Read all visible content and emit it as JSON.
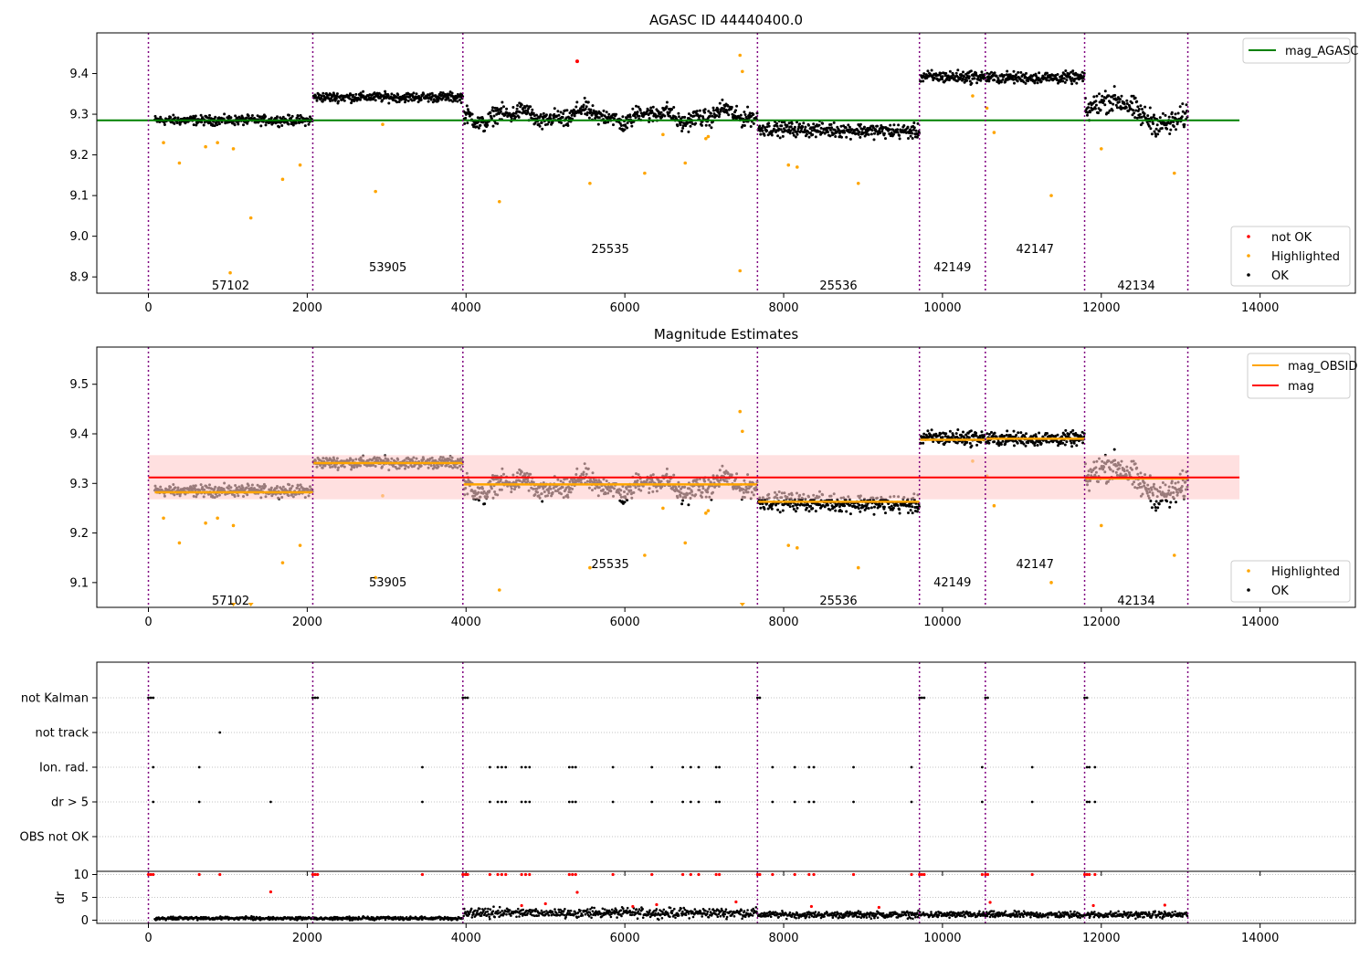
{
  "colors": {
    "ok": "#000000",
    "highlighted": "#ffa500",
    "not_ok": "#ff0000",
    "agasc_line": "#008000",
    "obsid_line": "#ffa500",
    "mag_line": "#ff0000",
    "mag_band": "#ffcccc",
    "obs_boundary": "#800080",
    "grid": "#b0b0b0"
  },
  "chart_data": [
    {
      "type": "scatter",
      "title": "AGASC ID 44440400.0",
      "xlim": [
        -650,
        15200
      ],
      "ylim": [
        8.86,
        9.5
      ],
      "xticks": [
        0,
        2000,
        4000,
        6000,
        8000,
        10000,
        12000,
        14000
      ],
      "yticks": [
        8.9,
        9.0,
        9.1,
        9.2,
        9.3,
        9.4
      ],
      "ytick_labels": [
        "8.9",
        "9.0",
        "9.1",
        "9.2",
        "9.3",
        "9.4"
      ],
      "obs_boundaries": [
        0,
        2070,
        3960,
        7670,
        9710,
        10540,
        11790,
        13090
      ],
      "obsids": [
        {
          "label": "57102",
          "x": 1035,
          "y": 8.88
        },
        {
          "label": "53905",
          "x": 3015,
          "y": 8.925
        },
        {
          "label": "25535",
          "x": 5815,
          "y": 8.97
        },
        {
          "label": "25536",
          "x": 8690,
          "y": 8.88
        },
        {
          "label": "42149",
          "x": 10125,
          "y": 8.925
        },
        {
          "label": "42147",
          "x": 11165,
          "y": 8.97
        },
        {
          "label": "42134",
          "x": 12440,
          "y": 8.88
        }
      ],
      "segments": [
        {
          "x": [
            80,
            2070
          ],
          "mag": 9.285,
          "noise": 0.01,
          "obs_mag": 9.282
        },
        {
          "x": [
            2080,
            3960
          ],
          "mag": 9.342,
          "noise": 0.01,
          "obs_mag": 9.341
        },
        {
          "x": [
            3970,
            7670
          ],
          "mag": 9.295,
          "noise": 0.018,
          "obs_mag": 9.298
        },
        {
          "x": [
            7680,
            9710
          ],
          "mag": 9.265,
          "noise": 0.015,
          "obs_mag": 9.263
        },
        {
          "x": [
            9720,
            10540
          ],
          "mag": 9.392,
          "noise": 0.013,
          "obs_mag": 9.388
        },
        {
          "x": [
            10550,
            11790
          ],
          "mag": 9.39,
          "noise": 0.012,
          "obs_mag": 9.39
        },
        {
          "x": [
            11800,
            13090
          ],
          "mag": 9.305,
          "noise": 0.025,
          "obs_mag": 9.31
        }
      ],
      "highlighted_points": [
        [
          190,
          9.23
        ],
        [
          390,
          9.18
        ],
        [
          720,
          9.22
        ],
        [
          870,
          9.23
        ],
        [
          1070,
          9.215
        ],
        [
          1290,
          9.045
        ],
        [
          1690,
          9.14
        ],
        [
          1910,
          9.175
        ],
        [
          1030,
          8.91
        ],
        [
          2860,
          9.11
        ],
        [
          2950,
          9.275
        ],
        [
          4420,
          9.085
        ],
        [
          5560,
          9.13
        ],
        [
          6250,
          9.155
        ],
        [
          6760,
          9.18
        ],
        [
          7450,
          8.915
        ],
        [
          7450,
          9.445
        ],
        [
          7480,
          9.405
        ],
        [
          8060,
          9.175
        ],
        [
          8170,
          9.17
        ],
        [
          8940,
          9.13
        ],
        [
          10380,
          9.345
        ],
        [
          10560,
          9.315
        ],
        [
          10650,
          9.255
        ],
        [
          11370,
          9.1
        ],
        [
          12000,
          9.215
        ],
        [
          12920,
          9.155
        ],
        [
          7020,
          9.24
        ],
        [
          7050,
          9.245
        ],
        [
          6480,
          9.25
        ]
      ],
      "not_ok_points": [
        [
          5400,
          9.43
        ]
      ],
      "legend": [
        "mag_AGASC",
        "not OK",
        "Highlighted",
        "OK"
      ],
      "legend_position": "top-right",
      "agasc_mag": 9.285,
      "agasc_line_x": [
        -650,
        13740
      ]
    },
    {
      "type": "scatter",
      "title": "Magnitude Estimates",
      "xlim": [
        -650,
        15200
      ],
      "ylim": [
        9.05,
        9.575
      ],
      "xticks": [
        0,
        2000,
        4000,
        6000,
        8000,
        10000,
        12000,
        14000
      ],
      "yticks": [
        9.1,
        9.2,
        9.3,
        9.4,
        9.5
      ],
      "ytick_labels": [
        "9.1",
        "9.2",
        "9.3",
        "9.4",
        "9.5"
      ],
      "obsids": [
        {
          "label": "57102",
          "x": 1035,
          "y": 9.065
        },
        {
          "label": "53905",
          "x": 3015,
          "y": 9.102
        },
        {
          "label": "25535",
          "x": 5815,
          "y": 9.138
        },
        {
          "label": "25536",
          "x": 8690,
          "y": 9.065
        },
        {
          "label": "42149",
          "x": 10125,
          "y": 9.102
        },
        {
          "label": "42147",
          "x": 11165,
          "y": 9.138
        },
        {
          "label": "42134",
          "x": 12440,
          "y": 9.065
        }
      ],
      "mag": 9.312,
      "mag_band": [
        9.268,
        9.357
      ],
      "mag_line_x": [
        0,
        13740
      ],
      "clipped_low_points": [
        1070,
        1290,
        7480
      ],
      "legend_top": [
        "mag_OBSID",
        "mag"
      ],
      "legend_bottom": [
        "Highlighted",
        "OK"
      ]
    },
    {
      "type": "scatter",
      "categories": [
        "not Kalman",
        "not track",
        "Ion. rad.",
        "dr > 5",
        "OBS not OK"
      ],
      "flags": {
        "not Kalman": [
          0,
          30,
          60,
          2070,
          2100,
          2130,
          3960,
          3990,
          4020,
          7670,
          7700,
          9710,
          9740,
          9770,
          10540,
          10570,
          11790,
          11820
        ],
        "not track": [
          900
        ],
        "Ion. rad.": [
          60,
          640,
          3450,
          4300,
          4400,
          4450,
          4500,
          4700,
          4750,
          4800,
          5300,
          5340,
          5380,
          5850,
          6340,
          6730,
          6830,
          6930,
          7150,
          7190,
          7860,
          8140,
          8320,
          8380,
          8880,
          9610,
          10500,
          11130,
          11820,
          11850,
          11920
        ],
        "dr > 5": [
          60,
          640,
          1540,
          3450,
          4300,
          4400,
          4450,
          4500,
          4700,
          4750,
          4800,
          5300,
          5340,
          5380,
          5850,
          6340,
          6730,
          6830,
          6930,
          7150,
          7190,
          7860,
          8140,
          8320,
          8380,
          8880,
          9610,
          10500,
          11130,
          11820,
          11850,
          11920
        ],
        "OBS not OK": []
      }
    },
    {
      "type": "scatter",
      "ylabel": "dr",
      "ylim": [
        -0.7,
        10.7
      ],
      "yticks": [
        0,
        5,
        10
      ],
      "ytick_labels": [
        "0",
        "5",
        "10"
      ],
      "xticks": [
        0,
        2000,
        4000,
        6000,
        8000,
        10000,
        12000,
        14000
      ],
      "dr_segments": [
        {
          "x": [
            80,
            3960
          ],
          "level": 0.4,
          "spread": 0.3
        },
        {
          "x": [
            3970,
            7670
          ],
          "level": 1.6,
          "spread": 0.9
        },
        {
          "x": [
            7680,
            13090
          ],
          "level": 1.2,
          "spread": 0.6
        }
      ],
      "dr_high_points": [
        [
          0,
          10
        ],
        [
          30,
          10
        ],
        [
          60,
          10
        ],
        [
          640,
          10
        ],
        [
          900,
          10
        ],
        [
          2070,
          10
        ],
        [
          2100,
          10
        ],
        [
          2130,
          10
        ],
        [
          3450,
          10
        ],
        [
          3960,
          10
        ],
        [
          3990,
          10
        ],
        [
          4020,
          10
        ],
        [
          4300,
          10
        ],
        [
          4400,
          10
        ],
        [
          4450,
          10
        ],
        [
          4500,
          10
        ],
        [
          4700,
          10
        ],
        [
          4750,
          10
        ],
        [
          4800,
          10
        ],
        [
          5300,
          10
        ],
        [
          5340,
          10
        ],
        [
          5380,
          10
        ],
        [
          5850,
          10
        ],
        [
          6340,
          10
        ],
        [
          6730,
          10
        ],
        [
          6830,
          10
        ],
        [
          6930,
          10
        ],
        [
          7150,
          10
        ],
        [
          7190,
          10
        ],
        [
          7670,
          10
        ],
        [
          7700,
          10
        ],
        [
          7860,
          10
        ],
        [
          8140,
          10
        ],
        [
          8320,
          10
        ],
        [
          8380,
          10
        ],
        [
          8880,
          10
        ],
        [
          9610,
          10
        ],
        [
          9710,
          10
        ],
        [
          9740,
          10
        ],
        [
          9770,
          10
        ],
        [
          10500,
          10
        ],
        [
          10540,
          10
        ],
        [
          10570,
          10
        ],
        [
          11130,
          10
        ],
        [
          11790,
          10
        ],
        [
          11820,
          10
        ],
        [
          11850,
          10
        ],
        [
          11920,
          10
        ],
        [
          1540,
          6.2
        ],
        [
          5400,
          6.1
        ],
        [
          4700,
          3.2
        ],
        [
          5000,
          3.6
        ],
        [
          6100,
          3.0
        ],
        [
          6400,
          3.4
        ],
        [
          7400,
          4.0
        ],
        [
          8350,
          3.0
        ],
        [
          9200,
          2.8
        ],
        [
          10600,
          3.9
        ],
        [
          11900,
          3.2
        ],
        [
          12800,
          3.3
        ]
      ]
    }
  ]
}
